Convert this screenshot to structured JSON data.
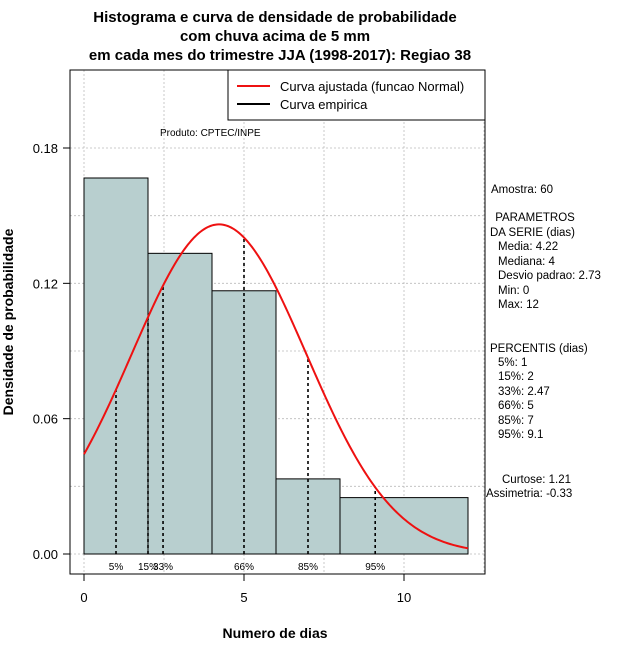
{
  "chart_data": {
    "type": "histogram",
    "title_lines": [
      "Histograma e curva de densidade de probabilidade",
      "com chuva acima de 5 mm",
      "em cada mes do trimestre JJA (1998-2017): Regiao 38"
    ],
    "xlabel": "Numero de dias",
    "ylabel": "Densidade de probabilidade",
    "xlim": [
      -0.5,
      12.5
    ],
    "ylim": [
      -0.005,
      0.213
    ],
    "x_ticks": [
      0,
      5,
      10
    ],
    "y_ticks": [
      0.0,
      0.06,
      0.12,
      0.18
    ],
    "y_tick_labels": [
      "0.00",
      "0.06",
      "0.12",
      "0.18"
    ],
    "grid_x": [
      0,
      2.5,
      5,
      7.5,
      10,
      12.5
    ],
    "grid_y": [
      0,
      0.03,
      0.06,
      0.09,
      0.12,
      0.15,
      0.18
    ],
    "bins": [
      {
        "start": 0,
        "end": 2,
        "density": 0.1667
      },
      {
        "start": 2,
        "end": 4,
        "density": 0.1333
      },
      {
        "start": 4,
        "end": 6,
        "density": 0.1167
      },
      {
        "start": 6,
        "end": 8,
        "density": 0.0333
      },
      {
        "start": 8,
        "end": 12,
        "density": 0.025
      }
    ],
    "bar_color": "#b8cfcf",
    "normal_curve": {
      "mean": 4.22,
      "sd": 2.73,
      "x_range": [
        0,
        12
      ],
      "color": "#ee1111",
      "label": "Curva ajustada (funcao Normal)"
    },
    "empirical_label": "Curva empirica",
    "percentile_lines": [
      {
        "label": "5%",
        "x": 1
      },
      {
        "label": "15%",
        "x": 2
      },
      {
        "label": "33%",
        "x": 2.47
      },
      {
        "label": "66%",
        "x": 5
      },
      {
        "label": "85%",
        "x": 7
      },
      {
        "label": "95%",
        "x": 9.1
      }
    ],
    "produto": "Produto: CPTEC/INPE",
    "sample": "Amostra: 60",
    "params_header": [
      " PARAMETROS",
      "DA SERIE (dias)"
    ],
    "params": [
      "Media: 4.22",
      "Mediana: 4",
      "Desvio padrao: 2.73",
      "Min: 0",
      "Max: 12"
    ],
    "percentis_header": "PERCENTIS (dias)",
    "percentis": [
      "5%: 1",
      "15%: 2",
      "33%: 2.47",
      "66%: 5",
      "85%: 7",
      "95%: 9.1"
    ],
    "curtose": "Curtose: 1.21",
    "assimetria": "Assimetria: -0.33"
  }
}
